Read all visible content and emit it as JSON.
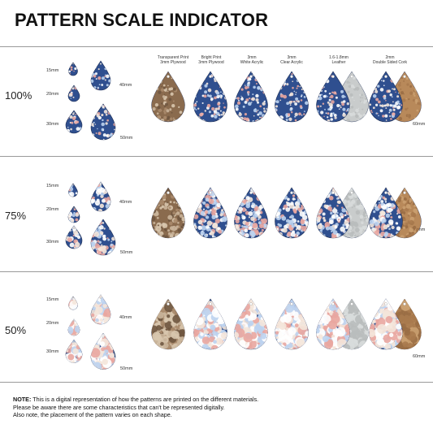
{
  "title": "PATTERN SCALE INDICATOR",
  "rows": [
    {
      "label": "100%",
      "sizes": {
        "s15": "15mm",
        "s20": "20mm",
        "s30": "30mm",
        "s40": "40mm",
        "s50": "50mm",
        "s60": "60mm"
      }
    },
    {
      "label": "75%",
      "sizes": {
        "s15": "15mm",
        "s20": "20mm",
        "s30": "30mm",
        "s40": "40mm",
        "s50": "50mm",
        "s60": "60mm"
      }
    },
    {
      "label": "50%",
      "sizes": {
        "s15": "15mm",
        "s20": "20mm",
        "s30": "30mm",
        "s40": "40mm",
        "s50": "50mm",
        "s60": "60mm"
      }
    }
  ],
  "materials": [
    {
      "line1": "Transparent Print",
      "line2": "3mm Plywood"
    },
    {
      "line1": "Bright Print",
      "line2": "3mm Plywood"
    },
    {
      "line1": "3mm",
      "line2": "White Acrylic"
    },
    {
      "line1": "3mm",
      "line2": "Clear Acrylic"
    },
    {
      "line1": "1.6-1.8mm",
      "line2": "Leather"
    },
    {
      "line1": "2mm",
      "line2": "Double Sided Cork"
    }
  ],
  "note": {
    "label": "NOTE:",
    "line1": "This is a digital representation of how the patterns are printed on the different materials.",
    "line2": "Please be aware there are some characteristics that can't be represented digitally.",
    "line3": "Also note, the placement of the pattern varies on each shape."
  },
  "colors": {
    "navy": "#2f4f8f",
    "plywood": "#8a6b4e",
    "leather": "#c9cccc",
    "cork": "#b8895a",
    "rule": "#9a9a9a"
  }
}
